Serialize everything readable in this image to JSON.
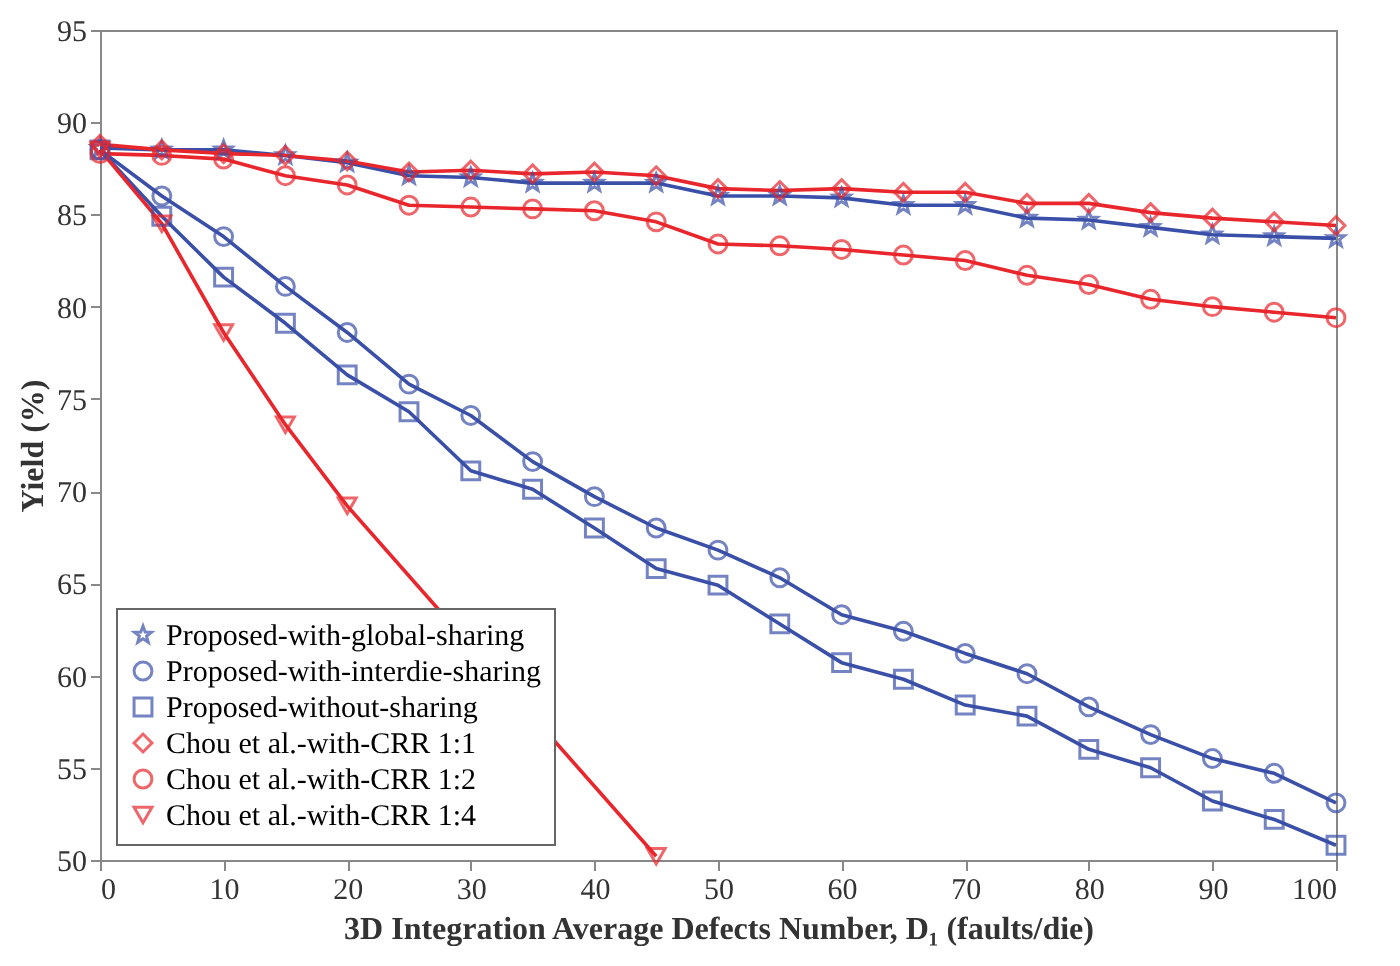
{
  "chart_data": {
    "type": "line",
    "xlabel": "3D Integration Average Defects Number, D₁ (faults/die)",
    "ylabel": "Yield (%)",
    "x": [
      0,
      5,
      10,
      15,
      20,
      25,
      30,
      35,
      40,
      45,
      50,
      55,
      60,
      65,
      70,
      75,
      80,
      85,
      90,
      95,
      100
    ],
    "xlim": [
      0,
      100
    ],
    "xticks": [
      0,
      10,
      20,
      30,
      40,
      50,
      60,
      70,
      80,
      90,
      100
    ],
    "ylim": [
      50,
      95
    ],
    "yticks": [
      50,
      55,
      60,
      65,
      70,
      75,
      80,
      85,
      90,
      95
    ],
    "grid": false,
    "legend": "bottom left",
    "line_style": "solid",
    "series": [
      {
        "name": "Proposed-with-global-sharing",
        "color": "#3a4fa8",
        "marker": "star",
        "values": [
          88.6,
          88.5,
          88.5,
          88.2,
          87.8,
          87.1,
          87.0,
          86.7,
          86.7,
          86.7,
          86.0,
          86.0,
          85.9,
          85.5,
          85.5,
          84.8,
          84.7,
          84.3,
          83.9,
          83.8,
          83.7
        ]
      },
      {
        "name": "Proposed-with-interdie-sharing",
        "color": "#3a4fa8",
        "marker": "circle",
        "values": [
          88.5,
          86.0,
          83.8,
          81.1,
          78.6,
          75.8,
          74.1,
          71.6,
          69.7,
          68.0,
          66.8,
          65.3,
          63.3,
          62.4,
          61.2,
          60.1,
          58.3,
          56.8,
          55.5,
          54.7,
          53.1
        ]
      },
      {
        "name": "Proposed-without-sharing",
        "color": "#3a4fa8",
        "marker": "square",
        "values": [
          88.5,
          84.9,
          81.6,
          79.1,
          76.3,
          74.3,
          71.1,
          70.1,
          68.0,
          65.8,
          64.9,
          62.8,
          60.7,
          59.8,
          58.4,
          57.8,
          56.0,
          55.0,
          53.2,
          52.2,
          50.8
        ]
      },
      {
        "name": "Chou et al.-with-CRR 1:1",
        "color": "#e8262c",
        "marker": "diamond",
        "values": [
          88.8,
          88.5,
          88.3,
          88.2,
          87.9,
          87.3,
          87.4,
          87.2,
          87.3,
          87.1,
          86.4,
          86.3,
          86.4,
          86.2,
          86.2,
          85.6,
          85.6,
          85.1,
          84.8,
          84.6,
          84.4
        ]
      },
      {
        "name": "Chou et al.-with-CRR 1:2",
        "color": "#e8262c",
        "marker": "circle",
        "values": [
          88.3,
          88.2,
          88.0,
          87.1,
          86.6,
          85.5,
          85.4,
          85.3,
          85.2,
          84.6,
          83.4,
          83.3,
          83.1,
          82.8,
          82.5,
          81.7,
          81.2,
          80.4,
          80.0,
          79.7,
          79.4
        ]
      },
      {
        "name": "Chou et al.-with-CRR 1:4",
        "color": "#e8262c",
        "marker": "triangle",
        "x": [
          0,
          5,
          10,
          15,
          20,
          45
        ],
        "values": [
          88.5,
          84.5,
          78.6,
          73.6,
          69.2,
          50.2
        ]
      }
    ]
  }
}
